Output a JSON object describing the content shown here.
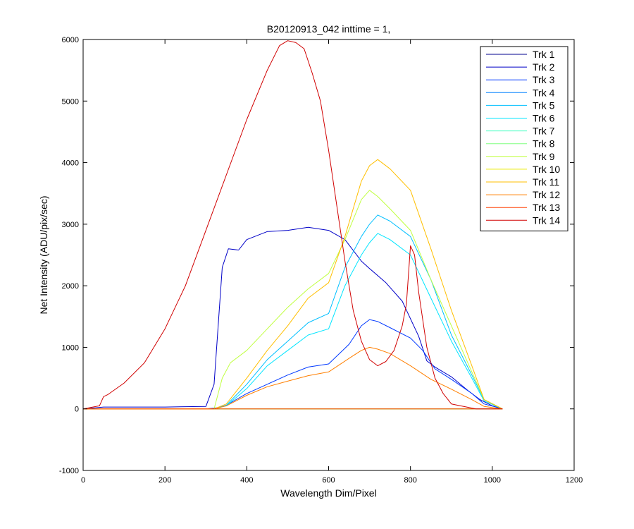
{
  "chart_data": {
    "type": "line",
    "title": "B20120913_042 inttime = 1,",
    "xlabel": "Wavelength Dim/Pixel",
    "ylabel": "Net Intensity (ADU/pix/sec)",
    "xlim": [
      0,
      1200
    ],
    "ylim": [
      -1000,
      6000
    ],
    "xticks": [
      0,
      200,
      400,
      600,
      800,
      1000,
      1200
    ],
    "yticks": [
      -1000,
      0,
      1000,
      2000,
      3000,
      4000,
      5000,
      6000
    ],
    "grid": false,
    "legend_position": "top-right",
    "series": [
      {
        "name": "Trk 1",
        "color": "#00008f",
        "x": [
          0,
          1025
        ],
        "y": [
          0,
          0
        ]
      },
      {
        "name": "Trk 2",
        "color": "#0000c8",
        "x": [
          0,
          50,
          100,
          200,
          300,
          320,
          340,
          355,
          380,
          400,
          450,
          500,
          550,
          600,
          640,
          680,
          700,
          740,
          780,
          820,
          840,
          860,
          900,
          940,
          970,
          1000,
          1025
        ],
        "y": [
          0,
          30,
          30,
          30,
          40,
          400,
          2300,
          2600,
          2580,
          2750,
          2880,
          2900,
          2950,
          2900,
          2750,
          2400,
          2280,
          2050,
          1750,
          1180,
          780,
          680,
          520,
          300,
          150,
          50,
          0
        ]
      },
      {
        "name": "Trk 3",
        "color": "#0038ff",
        "x": [
          0,
          300,
          330,
          350,
          400,
          450,
          500,
          550,
          600,
          650,
          680,
          700,
          720,
          750,
          800,
          830,
          860,
          900,
          950,
          980,
          1025
        ],
        "y": [
          0,
          0,
          20,
          60,
          250,
          400,
          550,
          680,
          730,
          1050,
          1350,
          1450,
          1420,
          1320,
          1150,
          950,
          650,
          480,
          250,
          80,
          0
        ]
      },
      {
        "name": "Trk 4",
        "color": "#0080ff",
        "x": [
          0,
          1025
        ],
        "y": [
          0,
          0
        ]
      },
      {
        "name": "Trk 5",
        "color": "#00bfff",
        "x": [
          0,
          320,
          350,
          400,
          450,
          500,
          550,
          600,
          640,
          680,
          700,
          720,
          750,
          800,
          850,
          900,
          950,
          980,
          1025
        ],
        "y": [
          0,
          0,
          60,
          400,
          800,
          1100,
          1400,
          1550,
          2300,
          2800,
          3000,
          3150,
          3050,
          2800,
          2100,
          1200,
          550,
          150,
          0
        ]
      },
      {
        "name": "Trk 6",
        "color": "#00e5ff",
        "x": [
          0,
          320,
          350,
          400,
          450,
          500,
          550,
          600,
          640,
          680,
          700,
          720,
          750,
          800,
          850,
          900,
          950,
          980,
          1025
        ],
        "y": [
          0,
          0,
          50,
          330,
          700,
          950,
          1200,
          1300,
          2000,
          2500,
          2700,
          2850,
          2750,
          2500,
          1800,
          1100,
          500,
          130,
          0
        ]
      },
      {
        "name": "Trk 7",
        "color": "#40ffbf",
        "x": [
          0,
          1025
        ],
        "y": [
          0,
          0
        ]
      },
      {
        "name": "Trk 8",
        "color": "#80ff80",
        "x": [
          0,
          1025
        ],
        "y": [
          0,
          0
        ]
      },
      {
        "name": "Trk 9",
        "color": "#c0ff40",
        "x": [
          0,
          320,
          340,
          360,
          400,
          450,
          500,
          550,
          600,
          640,
          680,
          700,
          720,
          750,
          800,
          850,
          900,
          950,
          980,
          1025
        ],
        "y": [
          0,
          0,
          500,
          750,
          950,
          1300,
          1650,
          1950,
          2200,
          2750,
          3400,
          3550,
          3450,
          3250,
          2900,
          2100,
          1350,
          600,
          150,
          0
        ]
      },
      {
        "name": "Trk 10",
        "color": "#eaea00",
        "x": [
          0,
          1025
        ],
        "y": [
          0,
          0
        ]
      },
      {
        "name": "Trk 11",
        "color": "#ffbf00",
        "x": [
          0,
          320,
          350,
          400,
          450,
          500,
          550,
          600,
          640,
          680,
          700,
          720,
          750,
          800,
          850,
          900,
          950,
          980,
          1025
        ],
        "y": [
          0,
          0,
          80,
          500,
          950,
          1350,
          1800,
          2050,
          2800,
          3700,
          3950,
          4050,
          3900,
          3550,
          2600,
          1600,
          700,
          150,
          0
        ]
      },
      {
        "name": "Trk 12",
        "color": "#ff7f00",
        "x": [
          0,
          320,
          350,
          400,
          450,
          500,
          550,
          600,
          650,
          680,
          700,
          720,
          750,
          800,
          850,
          900,
          950,
          980,
          1025
        ],
        "y": [
          0,
          0,
          50,
          220,
          360,
          450,
          540,
          600,
          820,
          950,
          1000,
          970,
          900,
          700,
          480,
          320,
          150,
          40,
          0
        ]
      },
      {
        "name": "Trk 13",
        "color": "#ff3f00",
        "x": [
          0,
          1025
        ],
        "y": [
          0,
          0
        ]
      },
      {
        "name": "Trk 14",
        "color": "#d00000",
        "x": [
          0,
          40,
          50,
          60,
          100,
          150,
          200,
          250,
          300,
          350,
          400,
          450,
          480,
          500,
          520,
          540,
          560,
          580,
          600,
          620,
          640,
          660,
          680,
          700,
          720,
          740,
          760,
          780,
          790,
          800,
          810,
          820,
          840,
          860,
          880,
          900,
          960,
          1025
        ],
        "y": [
          0,
          50,
          200,
          230,
          420,
          750,
          1300,
          2000,
          2900,
          3800,
          4700,
          5500,
          5900,
          5980,
          5950,
          5850,
          5450,
          5000,
          4200,
          3300,
          2400,
          1600,
          1100,
          800,
          700,
          770,
          950,
          1350,
          1700,
          2650,
          2500,
          1900,
          1000,
          500,
          250,
          80,
          0,
          0
        ]
      }
    ]
  }
}
